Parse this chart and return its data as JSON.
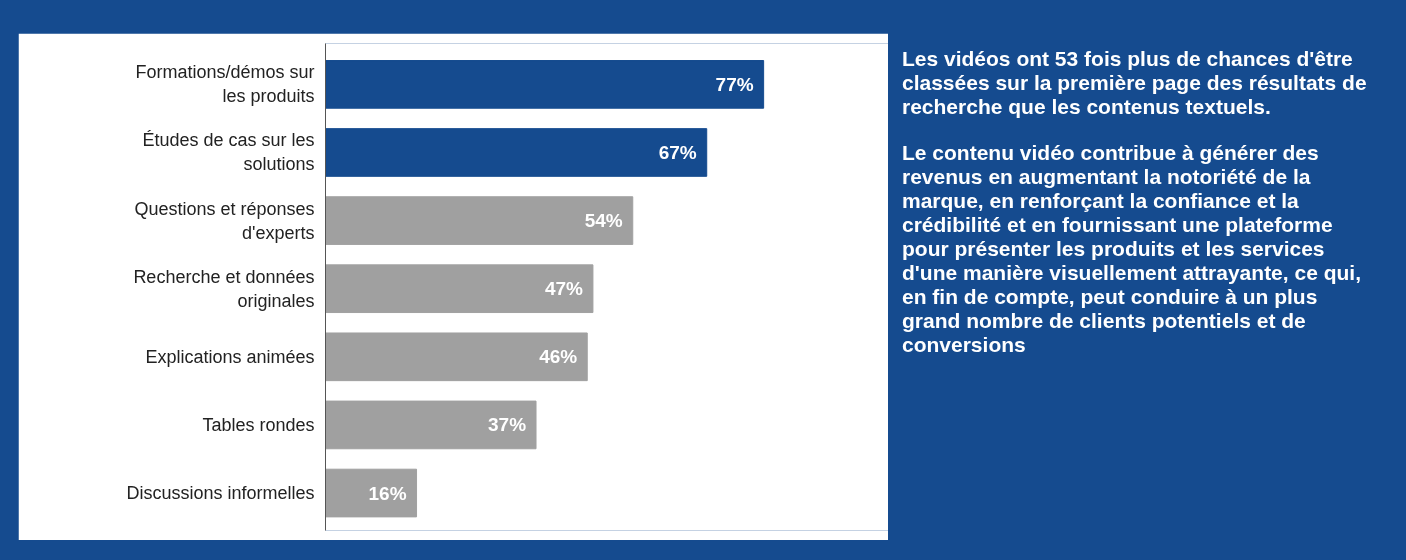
{
  "chart_data": {
    "type": "bar",
    "orientation": "horizontal",
    "categories": [
      "Formations/démos sur les produits",
      "Études de cas sur les solutions",
      "Questions et réponses d'experts",
      "Recherche et données originales",
      "Explications animées",
      "Tables rondes",
      "Discussions informelles"
    ],
    "values": [
      77,
      67,
      54,
      47,
      46,
      37,
      16
    ],
    "colors": [
      "#154b8f",
      "#154b8f",
      "#a0a0a0",
      "#a0a0a0",
      "#a0a0a0",
      "#a0a0a0",
      "#a0a0a0"
    ],
    "value_labels": [
      "77%",
      "67%",
      "54%",
      "47%",
      "46%",
      "37%",
      "16%"
    ],
    "grid": false,
    "annotations": [
      "Les vidéos ont 53 fois plus de chances d'être classées sur la première page des résultats de recherche que les contenus textuels.",
      "Le contenu vidéo contribue à générer des revenus en augmentant la notoriété de la marque, en renforçant la confiance et la crédibilité et en fournissant une plateforme pour présenter les produits et les services d'une manière visuellement attrayante, ce qui, en fin de compte, peut conduire à un plus grand nombre de clients potentiels et de conversions"
    ]
  }
}
